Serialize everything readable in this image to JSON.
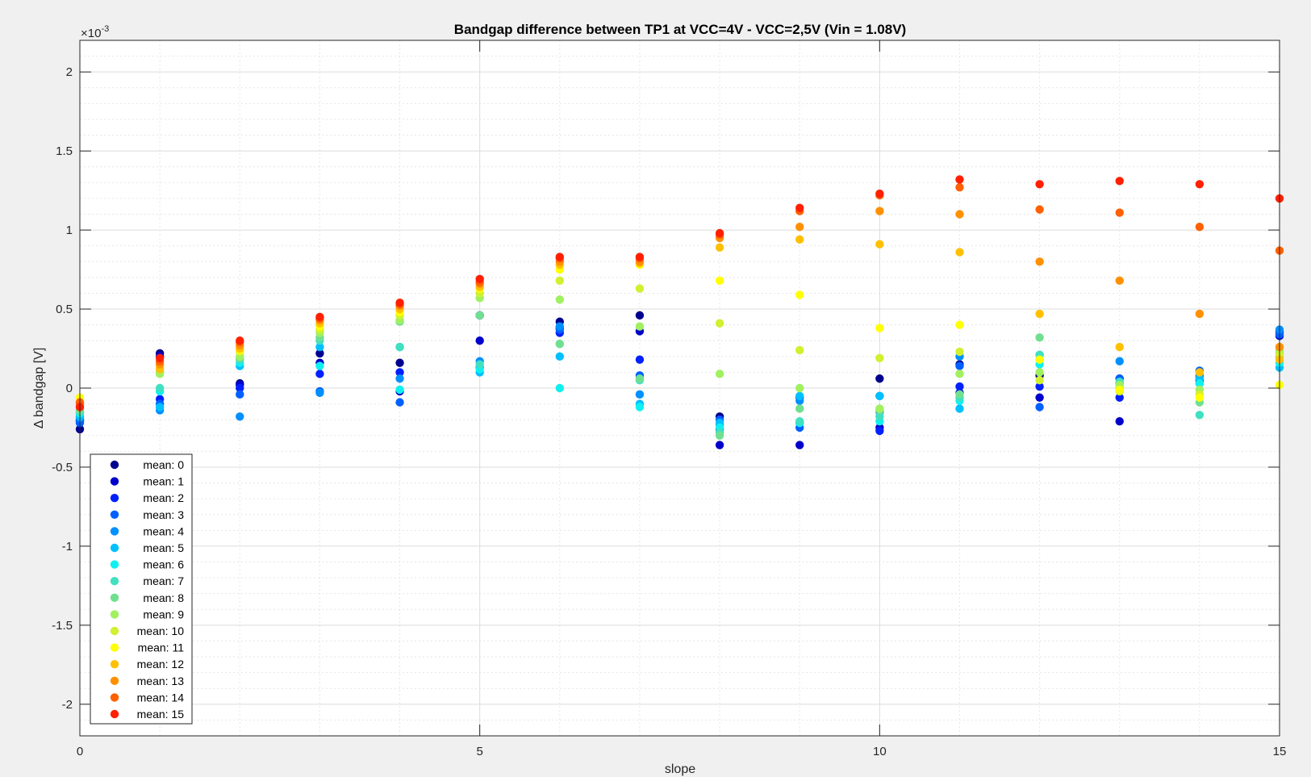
{
  "chart_data": {
    "type": "scatter",
    "title": "Bandgap difference between TP1 at VCC=4V - VCC=2,5V (Vin = 1.08V)",
    "xlabel": "slope",
    "ylabel": "Δ bandgap [V]",
    "exponent_label": "×10",
    "exponent_power": "-3",
    "xlim": [
      0,
      15
    ],
    "ylim": [
      -2.2,
      2.2
    ],
    "xticks": [
      0,
      5,
      10,
      15
    ],
    "xtick_labels": [
      "0",
      "5",
      "10",
      "15"
    ],
    "yticks": [
      -2,
      -1.5,
      -1,
      -0.5,
      0,
      0.5,
      1,
      1.5,
      2
    ],
    "ytick_labels": [
      "-2",
      "-1.5",
      "-1",
      "-0.5",
      "0",
      "0.5",
      "1",
      "1.5",
      "2"
    ],
    "y_scale_note": "values in units of 1e-3 V",
    "grid": true,
    "minor_grid": true,
    "legend_position": "bottom-left",
    "x": [
      0,
      1,
      2,
      3,
      4,
      5,
      6,
      7,
      8,
      9,
      10,
      11,
      12,
      13,
      14,
      15
    ],
    "series": [
      {
        "name": "mean: 0",
        "color": "#00008f",
        "values": [
          -0.26,
          0.22,
          0.03,
          0.22,
          0.16,
          0.46,
          0.42,
          0.46,
          -0.18,
          -0.22,
          0.06,
          0.15,
          0.08,
          0.06,
          0.05,
          0.35
        ]
      },
      {
        "name": "mean: 1",
        "color": "#0000cc",
        "values": [
          -0.2,
          0.2,
          0.02,
          0.16,
          -0.02,
          0.3,
          0.38,
          0.36,
          -0.36,
          -0.36,
          -0.25,
          -0.03,
          -0.06,
          -0.21,
          0.03,
          0.33
        ]
      },
      {
        "name": "mean: 2",
        "color": "#0020ff",
        "values": [
          -0.21,
          -0.07,
          0.0,
          0.09,
          0.1,
          0.46,
          0.35,
          0.18,
          -0.26,
          -0.06,
          -0.27,
          0.01,
          0.01,
          -0.06,
          0.07,
          0.36
        ]
      },
      {
        "name": "mean: 3",
        "color": "#0060ff",
        "values": [
          -0.22,
          -0.1,
          -0.04,
          -0.02,
          -0.09,
          0.13,
          0.37,
          0.08,
          -0.2,
          -0.25,
          -0.05,
          0.14,
          -0.12,
          0.06,
          0.11,
          0.34
        ]
      },
      {
        "name": "mean: 4",
        "color": "#0090ff",
        "values": [
          -0.19,
          -0.14,
          -0.18,
          -0.03,
          0.06,
          0.17,
          0.39,
          -0.04,
          -0.23,
          -0.08,
          -0.15,
          0.2,
          0.18,
          0.17,
          0.08,
          0.37
        ]
      },
      {
        "name": "mean: 5",
        "color": "#00c0ff",
        "values": [
          -0.18,
          -0.12,
          0.14,
          0.26,
          0.26,
          0.1,
          0.2,
          -0.1,
          -0.22,
          -0.05,
          -0.05,
          -0.13,
          0.21,
          0.03,
          0.06,
          0.13
        ]
      },
      {
        "name": "mean: 6",
        "color": "#10f0f0",
        "values": [
          -0.16,
          -0.02,
          0.16,
          0.14,
          -0.01,
          0.12,
          0.0,
          -0.12,
          -0.25,
          -0.22,
          -0.21,
          -0.08,
          0.15,
          0.0,
          0.03,
          0.16
        ]
      },
      {
        "name": "mean: 7",
        "color": "#40e0c0",
        "values": [
          -0.15,
          0.0,
          0.18,
          0.3,
          0.26,
          0.15,
          0.28,
          0.05,
          -0.28,
          -0.21,
          -0.18,
          -0.06,
          0.21,
          0.04,
          -0.17,
          0.2
        ]
      },
      {
        "name": "mean: 8",
        "color": "#70e090",
        "values": [
          -0.14,
          0.1,
          0.19,
          0.32,
          0.42,
          0.46,
          0.28,
          0.06,
          -0.3,
          -0.13,
          -0.14,
          -0.04,
          0.32,
          0.0,
          -0.09,
          0.22
        ]
      },
      {
        "name": "mean: 9",
        "color": "#a0f060",
        "values": [
          -0.12,
          0.09,
          0.2,
          0.35,
          0.43,
          0.57,
          0.56,
          0.39,
          0.09,
          -0.0,
          -0.13,
          0.09,
          0.1,
          0.02,
          -0.01,
          0.24
        ]
      },
      {
        "name": "mean: 10",
        "color": "#d0f030",
        "values": [
          -0.09,
          0.13,
          0.23,
          0.37,
          0.46,
          0.6,
          0.68,
          0.63,
          0.41,
          0.24,
          0.19,
          0.23,
          0.05,
          -0.02,
          -0.04,
          0.21
        ]
      },
      {
        "name": "mean: 11",
        "color": "#ffff00",
        "values": [
          -0.06,
          0.14,
          0.24,
          0.39,
          0.48,
          0.63,
          0.75,
          0.78,
          0.68,
          0.59,
          0.38,
          0.4,
          0.18,
          -0.01,
          -0.06,
          0.02
        ]
      },
      {
        "name": "mean: 12",
        "color": "#ffc000",
        "values": [
          -0.11,
          0.12,
          0.25,
          0.41,
          0.5,
          0.64,
          0.78,
          0.79,
          0.89,
          0.94,
          0.91,
          0.86,
          0.47,
          0.26,
          0.1,
          0.18
        ]
      },
      {
        "name": "mean: 13",
        "color": "#ff9000",
        "values": [
          -0.1,
          0.15,
          0.27,
          0.43,
          0.52,
          0.66,
          0.8,
          0.8,
          0.95,
          1.02,
          1.12,
          1.1,
          0.8,
          0.68,
          0.47,
          0.26
        ]
      },
      {
        "name": "mean: 14",
        "color": "#ff6000",
        "values": [
          -0.09,
          0.17,
          0.29,
          0.44,
          0.53,
          0.67,
          0.82,
          0.82,
          0.97,
          1.12,
          1.22,
          1.27,
          1.13,
          1.11,
          1.02,
          0.87
        ]
      },
      {
        "name": "mean: 15",
        "color": "#ff2000",
        "values": [
          -0.12,
          0.19,
          0.3,
          0.45,
          0.54,
          0.69,
          0.83,
          0.83,
          0.98,
          1.14,
          1.23,
          1.32,
          1.29,
          1.31,
          1.29,
          1.2
        ]
      }
    ]
  }
}
